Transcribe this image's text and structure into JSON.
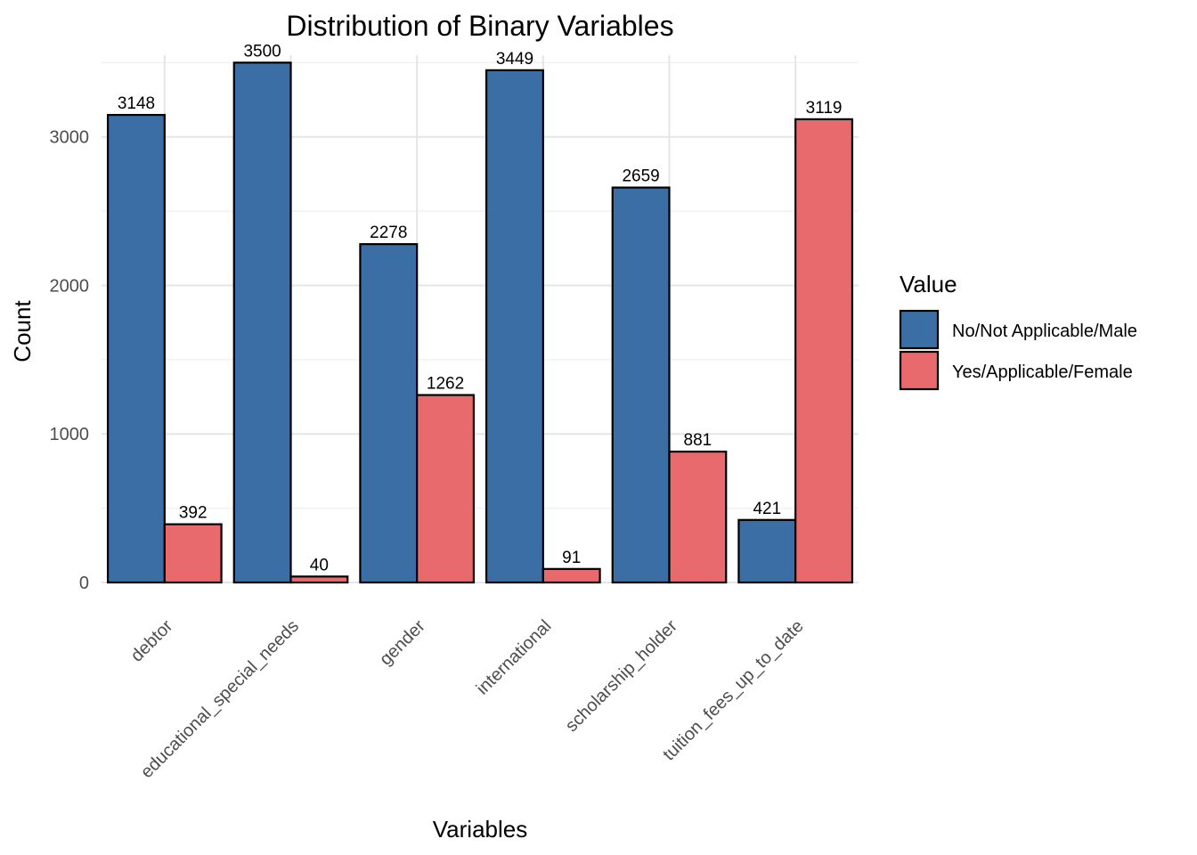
{
  "chart_data": {
    "type": "bar",
    "title": "Distribution of Binary Variables",
    "xlabel": "Variables",
    "ylabel": "Count",
    "categories": [
      "debtor",
      "educational_special_needs",
      "gender",
      "international",
      "scholarship_holder",
      "tuition_fees_up_to_date"
    ],
    "series": [
      {
        "name": "No/Not Applicable/Male",
        "color": "#3a6ea5",
        "values": [
          3148,
          3500,
          2278,
          3449,
          2659,
          421
        ]
      },
      {
        "name": "Yes/Applicable/Female",
        "color": "#e96a6c",
        "values": [
          392,
          40,
          1262,
          91,
          881,
          3119
        ]
      }
    ],
    "ylim": [
      0,
      3550
    ],
    "yticks": [
      0,
      1000,
      2000,
      3000
    ],
    "grid": true,
    "legend": {
      "title": "Value",
      "placement": "right"
    },
    "bar_labels": true
  }
}
